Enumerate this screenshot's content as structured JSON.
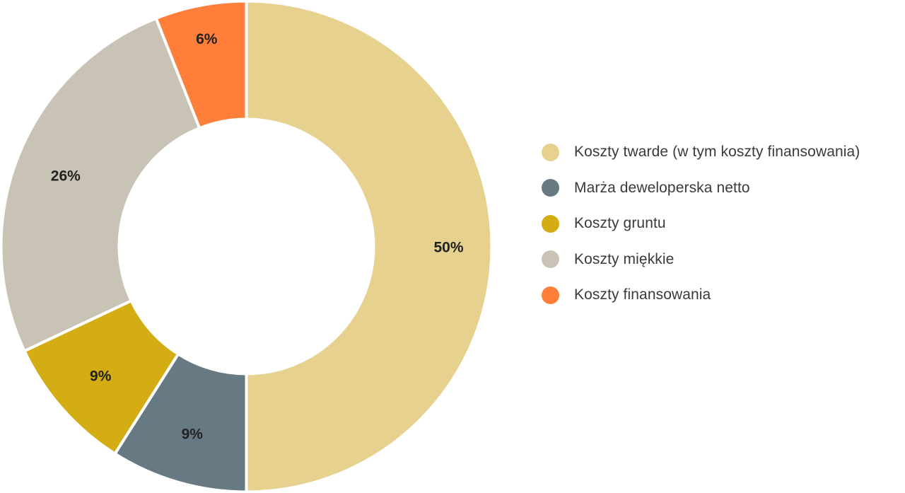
{
  "chart_data": {
    "type": "pie",
    "donut": true,
    "start": "top",
    "direction": "clockwise",
    "legend_position": "right",
    "slices": [
      {
        "label": "Koszty twarde (w tym koszty finansowania)",
        "value": 50,
        "display": "50%",
        "color": "#E6D18E"
      },
      {
        "label": "Marża deweloperska netto",
        "value": 9,
        "display": "9%",
        "color": "#677A83"
      },
      {
        "label": "Koszty gruntu",
        "value": 9,
        "display": "9%",
        "color": "#D4AC14"
      },
      {
        "label": "Koszty miękkie",
        "value": 26,
        "display": "26%",
        "color": "#C9C3B5"
      },
      {
        "label": "Koszty finansowania",
        "value": 6,
        "display": "6%",
        "color": "#FF7F3A"
      }
    ]
  }
}
